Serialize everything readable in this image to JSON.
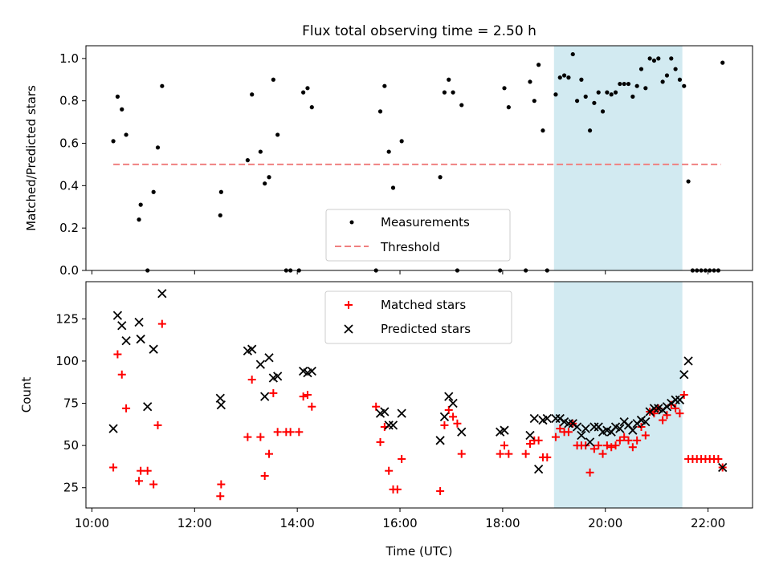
{
  "title": "Flux total observing time = 2.50 h",
  "chart_data": [
    {
      "type": "scatter",
      "panel": "top",
      "xlabel": "",
      "ylabel": "Matched/Predicted stars",
      "ylim": [
        0,
        1.06
      ],
      "yticks": [
        0.0,
        0.2,
        0.4,
        0.6,
        0.8,
        1.0
      ],
      "ytick_labels": [
        "0.0",
        "0.2",
        "0.4",
        "0.6",
        "0.8",
        "1.0"
      ],
      "shaded_span": {
        "from": "19:00",
        "to": "21:30",
        "color": "#add8e6"
      },
      "legend": {
        "placement": "bottom-center",
        "entries": [
          "Measurements",
          "Threshold"
        ]
      },
      "threshold": {
        "name": "Threshold",
        "value": 0.5,
        "x_range": [
          "10:25",
          "22:15"
        ],
        "color": "#f08080"
      },
      "series": [
        {
          "name": "Measurements",
          "color": "#000000",
          "points": [
            [
              "10:25",
              0.61
            ],
            [
              "10:30",
              0.82
            ],
            [
              "10:35",
              0.76
            ],
            [
              "10:40",
              0.64
            ],
            [
              "10:55",
              0.24
            ],
            [
              "10:57",
              0.31
            ],
            [
              "11:05",
              0.0
            ],
            [
              "11:12",
              0.37
            ],
            [
              "11:17",
              0.58
            ],
            [
              "11:22",
              0.87
            ],
            [
              "12:30",
              0.26
            ],
            [
              "12:31",
              0.37
            ],
            [
              "13:02",
              0.52
            ],
            [
              "13:07",
              0.83
            ],
            [
              "13:17",
              0.56
            ],
            [
              "13:22",
              0.41
            ],
            [
              "13:27",
              0.44
            ],
            [
              "13:32",
              0.9
            ],
            [
              "13:37",
              0.64
            ],
            [
              "13:47",
              0.0
            ],
            [
              "13:52",
              0.0
            ],
            [
              "14:02",
              0.0
            ],
            [
              "14:07",
              0.84
            ],
            [
              "14:12",
              0.86
            ],
            [
              "14:17",
              0.77
            ],
            [
              "15:32",
              0.0
            ],
            [
              "15:37",
              0.75
            ],
            [
              "15:42",
              0.87
            ],
            [
              "15:47",
              0.56
            ],
            [
              "15:52",
              0.39
            ],
            [
              "16:02",
              0.61
            ],
            [
              "16:47",
              0.44
            ],
            [
              "16:52",
              0.84
            ],
            [
              "16:57",
              0.9
            ],
            [
              "17:02",
              0.84
            ],
            [
              "17:07",
              0.0
            ],
            [
              "17:12",
              0.78
            ],
            [
              "17:57",
              0.0
            ],
            [
              "18:02",
              0.86
            ],
            [
              "18:07",
              0.77
            ],
            [
              "18:27",
              0.0
            ],
            [
              "18:32",
              0.89
            ],
            [
              "18:37",
              0.8
            ],
            [
              "18:42",
              0.97
            ],
            [
              "18:47",
              0.66
            ],
            [
              "18:52",
              0.0
            ],
            [
              "19:02",
              0.83
            ],
            [
              "19:07",
              0.91
            ],
            [
              "19:12",
              0.92
            ],
            [
              "19:17",
              0.91
            ],
            [
              "19:22",
              1.02
            ],
            [
              "19:27",
              0.8
            ],
            [
              "19:32",
              0.9
            ],
            [
              "19:37",
              0.82
            ],
            [
              "19:42",
              0.66
            ],
            [
              "19:47",
              0.79
            ],
            [
              "19:52",
              0.84
            ],
            [
              "19:57",
              0.75
            ],
            [
              "20:02",
              0.84
            ],
            [
              "20:07",
              0.83
            ],
            [
              "20:12",
              0.84
            ],
            [
              "20:17",
              0.88
            ],
            [
              "20:22",
              0.88
            ],
            [
              "20:27",
              0.88
            ],
            [
              "20:32",
              0.82
            ],
            [
              "20:37",
              0.87
            ],
            [
              "20:42",
              0.95
            ],
            [
              "20:47",
              0.86
            ],
            [
              "20:52",
              1.0
            ],
            [
              "20:57",
              0.99
            ],
            [
              "21:02",
              1.0
            ],
            [
              "21:07",
              0.89
            ],
            [
              "21:12",
              0.92
            ],
            [
              "21:17",
              1.0
            ],
            [
              "21:22",
              0.95
            ],
            [
              "21:27",
              0.9
            ],
            [
              "21:32",
              0.87
            ],
            [
              "21:37",
              0.42
            ],
            [
              "21:42",
              0.0
            ],
            [
              "21:47",
              0.0
            ],
            [
              "21:52",
              0.0
            ],
            [
              "21:57",
              0.0
            ],
            [
              "22:02",
              0.0
            ],
            [
              "22:07",
              0.0
            ],
            [
              "22:12",
              0.0
            ],
            [
              "22:17",
              0.98
            ]
          ]
        }
      ]
    },
    {
      "type": "scatter",
      "panel": "bottom",
      "xlabel": "Time (UTC)",
      "ylabel": "Count",
      "ylim": [
        13,
        147
      ],
      "yticks": [
        25,
        50,
        75,
        100,
        125
      ],
      "ytick_labels": [
        "25",
        "50",
        "75",
        "100",
        "125"
      ],
      "xlim": [
        "9:53",
        "22:52"
      ],
      "xticks": [
        "10:00",
        "12:00",
        "14:00",
        "16:00",
        "18:00",
        "20:00",
        "22:00"
      ],
      "xtick_labels": [
        "10:00",
        "12:00",
        "14:00",
        "16:00",
        "18:00",
        "20:00",
        "22:00"
      ],
      "shaded_span": {
        "from": "19:00",
        "to": "21:30",
        "color": "#add8e6"
      },
      "legend": {
        "placement": "top-center",
        "entries": [
          "Matched stars",
          "Predicted stars"
        ]
      },
      "series": [
        {
          "name": "Matched stars",
          "marker": "+",
          "color": "#ff0000",
          "points": [
            [
              "10:25",
              37
            ],
            [
              "10:30",
              104
            ],
            [
              "10:35",
              92
            ],
            [
              "10:40",
              72
            ],
            [
              "10:55",
              29
            ],
            [
              "10:57",
              35
            ],
            [
              "11:05",
              35
            ],
            [
              "11:12",
              27
            ],
            [
              "11:17",
              62
            ],
            [
              "11:22",
              122
            ],
            [
              "12:30",
              20
            ],
            [
              "12:31",
              27
            ],
            [
              "13:02",
              55
            ],
            [
              "13:07",
              89
            ],
            [
              "13:17",
              55
            ],
            [
              "13:22",
              32
            ],
            [
              "13:27",
              45
            ],
            [
              "13:32",
              81
            ],
            [
              "13:37",
              58
            ],
            [
              "13:47",
              58
            ],
            [
              "13:52",
              58
            ],
            [
              "14:02",
              58
            ],
            [
              "14:07",
              79
            ],
            [
              "14:12",
              80
            ],
            [
              "14:17",
              73
            ],
            [
              "15:32",
              73
            ],
            [
              "15:37",
              52
            ],
            [
              "15:42",
              61
            ],
            [
              "15:47",
              35
            ],
            [
              "15:52",
              24
            ],
            [
              "15:57",
              24
            ],
            [
              "16:02",
              42
            ],
            [
              "16:47",
              23
            ],
            [
              "16:52",
              62
            ],
            [
              "16:57",
              71
            ],
            [
              "17:02",
              67
            ],
            [
              "17:07",
              63
            ],
            [
              "17:12",
              45
            ],
            [
              "17:57",
              45
            ],
            [
              "18:02",
              50
            ],
            [
              "18:07",
              45
            ],
            [
              "18:27",
              45
            ],
            [
              "18:32",
              51
            ],
            [
              "18:37",
              53
            ],
            [
              "18:42",
              53
            ],
            [
              "18:47",
              43
            ],
            [
              "18:52",
              43
            ],
            [
              "19:02",
              55
            ],
            [
              "19:07",
              60
            ],
            [
              "19:12",
              58
            ],
            [
              "19:17",
              58
            ],
            [
              "19:22",
              63
            ],
            [
              "19:27",
              50
            ],
            [
              "19:32",
              50
            ],
            [
              "19:37",
              50
            ],
            [
              "19:42",
              34
            ],
            [
              "19:47",
              48
            ],
            [
              "19:52",
              50
            ],
            [
              "19:57",
              45
            ],
            [
              "20:02",
              50
            ],
            [
              "20:07",
              49
            ],
            [
              "20:12",
              50
            ],
            [
              "20:17",
              53
            ],
            [
              "20:22",
              55
            ],
            [
              "20:27",
              53
            ],
            [
              "20:32",
              49
            ],
            [
              "20:37",
              53
            ],
            [
              "20:42",
              61
            ],
            [
              "20:47",
              56
            ],
            [
              "20:52",
              70
            ],
            [
              "20:57",
              69
            ],
            [
              "21:02",
              72
            ],
            [
              "21:07",
              65
            ],
            [
              "21:12",
              68
            ],
            [
              "21:17",
              74
            ],
            [
              "21:22",
              72
            ],
            [
              "21:27",
              69
            ],
            [
              "21:32",
              80
            ],
            [
              "21:37",
              42
            ],
            [
              "21:42",
              42
            ],
            [
              "21:47",
              42
            ],
            [
              "21:52",
              42
            ],
            [
              "21:57",
              42
            ],
            [
              "22:02",
              42
            ],
            [
              "22:07",
              42
            ],
            [
              "22:12",
              42
            ],
            [
              "22:17",
              37
            ]
          ]
        },
        {
          "name": "Predicted stars",
          "marker": "x",
          "color": "#000000",
          "points": [
            [
              "10:25",
              60
            ],
            [
              "10:30",
              127
            ],
            [
              "10:35",
              121
            ],
            [
              "10:40",
              112
            ],
            [
              "10:55",
              123
            ],
            [
              "10:57",
              113
            ],
            [
              "11:05",
              73
            ],
            [
              "11:12",
              107
            ],
            [
              "11:22",
              140
            ],
            [
              "12:30",
              78
            ],
            [
              "12:31",
              74
            ],
            [
              "13:02",
              106
            ],
            [
              "13:07",
              107
            ],
            [
              "13:17",
              98
            ],
            [
              "13:22",
              79
            ],
            [
              "13:27",
              102
            ],
            [
              "13:32",
              90
            ],
            [
              "13:37",
              91
            ],
            [
              "14:07",
              94
            ],
            [
              "14:12",
              93
            ],
            [
              "14:17",
              94
            ],
            [
              "15:37",
              69
            ],
            [
              "15:42",
              70
            ],
            [
              "15:47",
              62
            ],
            [
              "15:52",
              62
            ],
            [
              "16:02",
              69
            ],
            [
              "16:47",
              53
            ],
            [
              "16:52",
              67
            ],
            [
              "16:57",
              79
            ],
            [
              "17:02",
              75
            ],
            [
              "17:12",
              58
            ],
            [
              "17:57",
              58
            ],
            [
              "18:02",
              59
            ],
            [
              "18:32",
              56
            ],
            [
              "18:37",
              66
            ],
            [
              "18:42",
              36
            ],
            [
              "18:47",
              65
            ],
            [
              "18:52",
              66
            ],
            [
              "19:02",
              66
            ],
            [
              "19:07",
              66
            ],
            [
              "19:12",
              64
            ],
            [
              "19:17",
              63
            ],
            [
              "19:22",
              63
            ],
            [
              "19:27",
              61
            ],
            [
              "19:32",
              56
            ],
            [
              "19:37",
              60
            ],
            [
              "19:42",
              52
            ],
            [
              "19:47",
              61
            ],
            [
              "19:52",
              61
            ],
            [
              "19:57",
              58
            ],
            [
              "20:02",
              59
            ],
            [
              "20:07",
              58
            ],
            [
              "20:12",
              61
            ],
            [
              "20:17",
              60
            ],
            [
              "20:22",
              64
            ],
            [
              "20:27",
              62
            ],
            [
              "20:32",
              59
            ],
            [
              "20:37",
              63
            ],
            [
              "20:42",
              65
            ],
            [
              "20:47",
              64
            ],
            [
              "20:52",
              70
            ],
            [
              "20:57",
              72
            ],
            [
              "21:02",
              72
            ],
            [
              "21:07",
              71
            ],
            [
              "21:12",
              73
            ],
            [
              "21:17",
              75
            ],
            [
              "21:22",
              77
            ],
            [
              "21:27",
              77
            ],
            [
              "21:32",
              92
            ],
            [
              "21:37",
              100
            ],
            [
              "22:17",
              37
            ]
          ]
        }
      ]
    }
  ]
}
